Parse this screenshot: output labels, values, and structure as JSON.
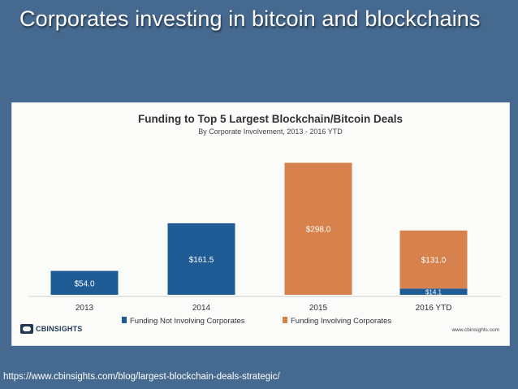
{
  "slide": {
    "title": "Corporates investing in bitcoin and blockchains",
    "source_url": "https://www.cbinsights.com/blog/largest-blockchain-deals-strategic/"
  },
  "branding": {
    "logo_text": "CBINSIGHTS",
    "credit": "www.cbinsights.com"
  },
  "colors": {
    "not_involving": "#1f5c96",
    "involving": "#d7824c"
  },
  "chart_data": {
    "type": "bar",
    "stacked": true,
    "title": "Funding to Top 5 Largest Blockchain/Bitcoin Deals",
    "subtitle": "By Corporate Involvement, 2013 - 2016 YTD",
    "categories": [
      "2013",
      "2014",
      "2015",
      "2016 YTD"
    ],
    "series": [
      {
        "name": "Funding Not Involving Corporates",
        "color": "#1f5c96",
        "values": [
          54.0,
          161.5,
          0,
          14.1
        ],
        "labels": [
          "$54.0",
          "$161.5",
          "",
          "$14.1"
        ]
      },
      {
        "name": "Funding Involving Corporates",
        "color": "#d7824c",
        "values": [
          0,
          0,
          298.0,
          131.0
        ],
        "labels": [
          "",
          "",
          "$298.0",
          "$131.0"
        ]
      }
    ],
    "ylim": [
      0,
      330
    ],
    "grid": false,
    "legend_position": "bottom"
  }
}
